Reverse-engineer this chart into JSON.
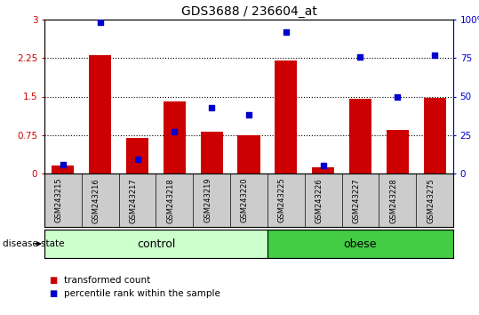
{
  "title": "GDS3688 / 236604_at",
  "categories": [
    "GSM243215",
    "GSM243216",
    "GSM243217",
    "GSM243218",
    "GSM243219",
    "GSM243220",
    "GSM243225",
    "GSM243226",
    "GSM243227",
    "GSM243228",
    "GSM243275"
  ],
  "bar_values": [
    0.15,
    2.3,
    0.7,
    1.4,
    0.82,
    0.75,
    2.2,
    0.12,
    1.45,
    0.85,
    1.48
  ],
  "scatter_percentile": [
    6,
    98,
    9,
    27,
    43,
    38,
    92,
    5,
    76,
    50,
    77
  ],
  "bar_color": "#cc0000",
  "scatter_color": "#0000cc",
  "ylim_left": [
    0,
    3
  ],
  "ylim_right": [
    0,
    100
  ],
  "yticks_left": [
    0,
    0.75,
    1.5,
    2.25,
    3
  ],
  "yticks_right": [
    0,
    25,
    50,
    75,
    100
  ],
  "ytick_labels_left": [
    "0",
    "0.75",
    "1.5",
    "2.25",
    "3"
  ],
  "ytick_labels_right": [
    "0",
    "25",
    "50",
    "75",
    "100%"
  ],
  "control_count": 6,
  "obese_count": 5,
  "control_label": "control",
  "obese_label": "obese",
  "disease_state_label": "disease state",
  "legend_bar_label": "transformed count",
  "legend_scatter_label": "percentile rank within the sample",
  "control_color": "#ccffcc",
  "obese_color": "#44cc44",
  "label_area_color": "#cccccc",
  "dotted_lines": [
    0.75,
    1.5,
    2.25
  ]
}
